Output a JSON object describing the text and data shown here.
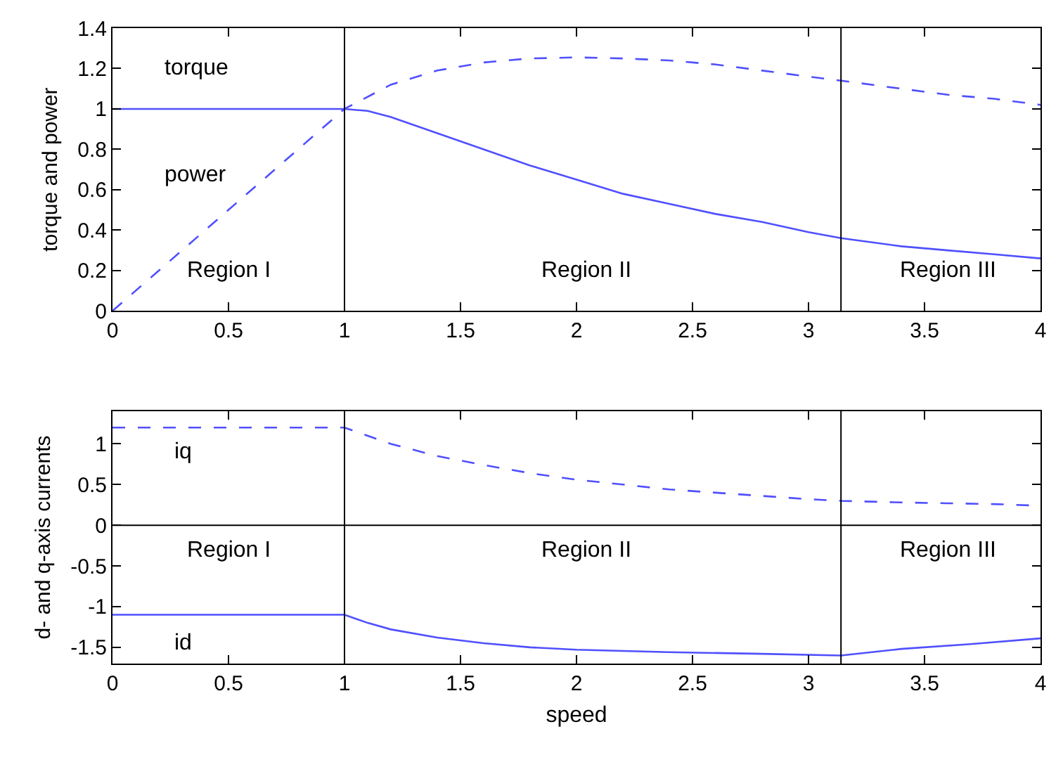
{
  "chart_data": [
    {
      "type": "line",
      "ylabel": "torque and power",
      "xlim": [
        0,
        4
      ],
      "ylim": [
        0,
        1.4
      ],
      "xticks": [
        0,
        0.5,
        1,
        1.5,
        2,
        2.5,
        3,
        3.5,
        4
      ],
      "yticks": [
        0,
        0.2,
        0.4,
        0.6,
        0.8,
        1,
        1.2,
        1.4
      ],
      "ref_lines": [
        {
          "axis": "x",
          "value": 1,
          "color": "#000000"
        },
        {
          "axis": "x",
          "value": 3.14,
          "color": "#000000"
        }
      ],
      "series": [
        {
          "color": "#5050ff",
          "line_style": "dashed",
          "x": [
            0,
            0.5,
            1,
            1.2,
            1.4,
            1.6,
            1.8,
            2,
            2.2,
            2.4,
            2.6,
            2.8,
            3,
            3.14,
            3.4,
            3.6,
            3.8,
            4
          ],
          "values": [
            0,
            0.5,
            1,
            1.12,
            1.19,
            1.23,
            1.25,
            1.255,
            1.25,
            1.24,
            1.22,
            1.19,
            1.16,
            1.14,
            1.1,
            1.07,
            1.05,
            1.02
          ]
        },
        {
          "color": "#5050ff",
          "line_style": "solid",
          "x": [
            0,
            1,
            1.1,
            1.2,
            1.4,
            1.6,
            1.8,
            2,
            2.2,
            2.4,
            2.6,
            2.8,
            3,
            3.14,
            3.4,
            3.6,
            3.8,
            4
          ],
          "values": [
            1,
            1,
            0.99,
            0.96,
            0.88,
            0.8,
            0.72,
            0.65,
            0.58,
            0.53,
            0.48,
            0.44,
            0.39,
            0.36,
            0.32,
            0.3,
            0.28,
            0.26
          ]
        }
      ],
      "annotations": [
        "torque",
        "power",
        "Region I",
        "Region II",
        "Region III"
      ]
    },
    {
      "type": "line",
      "xlabel": "speed",
      "ylabel": "d- and q-axis currents",
      "xlim": [
        0,
        4
      ],
      "ylim": [
        -1.7,
        1.4
      ],
      "xticks": [
        0,
        0.5,
        1,
        1.5,
        2,
        2.5,
        3,
        3.5,
        4
      ],
      "yticks": [
        -1.5,
        -1,
        -0.5,
        0,
        0.5,
        1
      ],
      "ref_lines": [
        {
          "axis": "y",
          "value": 0,
          "color": "#000000"
        },
        {
          "axis": "x",
          "value": 1,
          "color": "#000000"
        },
        {
          "axis": "x",
          "value": 3.14,
          "color": "#000000"
        }
      ],
      "series": [
        {
          "color": "#5050ff",
          "line_style": "dashed",
          "x": [
            0,
            1,
            1.2,
            1.4,
            1.6,
            1.8,
            2,
            2.2,
            2.4,
            2.6,
            2.8,
            3,
            3.14,
            3.4,
            3.6,
            3.8,
            4
          ],
          "values": [
            1.2,
            1.2,
            1.0,
            0.85,
            0.74,
            0.64,
            0.56,
            0.5,
            0.44,
            0.4,
            0.36,
            0.32,
            0.3,
            0.28,
            0.27,
            0.26,
            0.24
          ]
        },
        {
          "color": "#5050ff",
          "line_style": "solid",
          "x": [
            0,
            1,
            1.1,
            1.2,
            1.4,
            1.6,
            1.8,
            2,
            2.4,
            2.8,
            3.14,
            3.4,
            3.7,
            4
          ],
          "values": [
            -1.1,
            -1.1,
            -1.2,
            -1.28,
            -1.38,
            -1.45,
            -1.5,
            -1.53,
            -1.56,
            -1.58,
            -1.6,
            -1.52,
            -1.46,
            -1.39
          ]
        }
      ],
      "annotations": [
        "iq",
        "id",
        "Region I",
        "Region II",
        "Region III"
      ]
    }
  ]
}
